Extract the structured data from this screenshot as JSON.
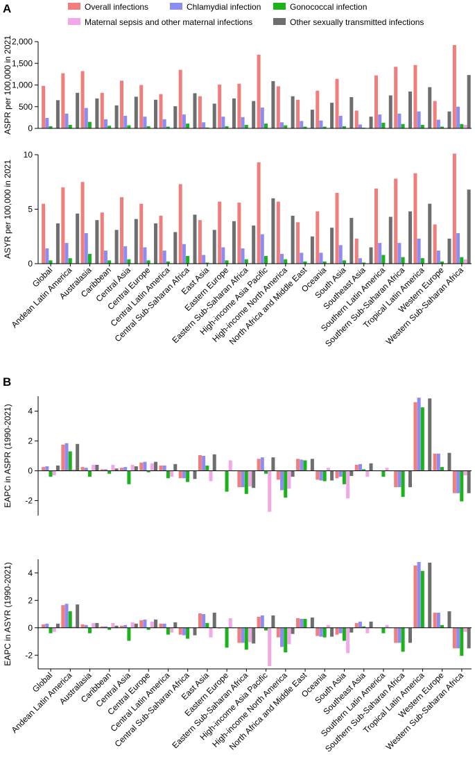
{
  "panel_labels": {
    "a": "A",
    "b": "B"
  },
  "legend": [
    {
      "key": "overall",
      "label": "Overall infections",
      "color": "#F17D7D"
    },
    {
      "key": "chlamydial",
      "label": "Chlamydial infection",
      "color": "#8C8CF2"
    },
    {
      "key": "gonococcal",
      "label": "Gonococcal infection",
      "color": "#1BB21B"
    },
    {
      "key": "maternal",
      "label": "Maternal sepsis and other maternal infections",
      "color": "#F2A7E7"
    },
    {
      "key": "other",
      "label": "Other sexually transmitted infections",
      "color": "#6E6E6E"
    }
  ],
  "chart_data": [
    {
      "type": "bar",
      "ylabel": "ASPR per 100,000 in 2021",
      "ylim": [
        0,
        2000
      ],
      "yticks": [
        0,
        500,
        1000,
        1500,
        2000
      ],
      "ytick_labels": [
        "0",
        "500",
        "1,000",
        "1,500",
        "2,000"
      ],
      "categories": [
        "Global",
        "Andean Latin America",
        "Australasia",
        "Caribbean",
        "Central Asia",
        "Central Europe",
        "Central Latin America",
        "Central Sub-Saharan Africa",
        "East Asia",
        "Eastern Europe",
        "Eastern Sub-Saharan Africa",
        "High-income Asia Pacific",
        "High-income North America",
        "North Africa and Middle East",
        "Oceania",
        "South Asia",
        "Southeast Asia",
        "Southern Latin America",
        "Southern Sub-Saharan Africa",
        "Tropical Latin America",
        "Western Europe",
        "Western Sub-Saharan Africa"
      ],
      "series": [
        {
          "name": "Overall infections",
          "values": [
            980,
            1270,
            1320,
            820,
            1100,
            1000,
            790,
            1350,
            740,
            1010,
            1030,
            1700,
            970,
            660,
            870,
            1140,
            410,
            1220,
            1420,
            1460,
            630,
            1920
          ]
        },
        {
          "name": "Chlamydial infection",
          "values": [
            240,
            340,
            470,
            210,
            290,
            270,
            210,
            320,
            140,
            270,
            260,
            480,
            140,
            170,
            180,
            290,
            90,
            320,
            340,
            390,
            200,
            500
          ]
        },
        {
          "name": "Gonococcal infection",
          "values": [
            50,
            80,
            150,
            60,
            70,
            50,
            40,
            110,
            20,
            50,
            80,
            110,
            70,
            40,
            40,
            50,
            15,
            130,
            100,
            80,
            40,
            100
          ]
        },
        {
          "name": "Maternal sepsis and other maternal infections",
          "values": [
            3,
            4,
            2,
            3,
            3,
            2,
            3,
            3,
            3,
            2,
            4,
            2,
            2,
            3,
            3,
            4,
            2,
            3,
            4,
            3,
            2,
            80
          ]
        },
        {
          "name": "Other sexually transmitted infections",
          "values": [
            650,
            820,
            690,
            530,
            730,
            660,
            510,
            810,
            570,
            690,
            630,
            1090,
            740,
            430,
            590,
            720,
            270,
            760,
            850,
            950,
            390,
            1230
          ]
        }
      ]
    },
    {
      "type": "bar",
      "ylabel": "ASYR per 100,000 in 2021",
      "ylim": [
        0,
        10
      ],
      "yticks": [
        0,
        5,
        10
      ],
      "ytick_labels": [
        "0",
        "5",
        "10"
      ],
      "categories": [
        "Global",
        "Andean Latin America",
        "Australasia",
        "Caribbean",
        "Central Asia",
        "Central Europe",
        "Central Latin America",
        "Central Sub-Saharan Africa",
        "East Asia",
        "Eastern Europe",
        "Eastern Sub-Saharan Africa",
        "High-income Asia Pacific",
        "High-income North America",
        "North Africa and Middle East",
        "Oceania",
        "South Asia",
        "Southeast Asia",
        "Southern Latin America",
        "Southern Sub-Saharan Africa",
        "Tropical Latin America",
        "Western Europe",
        "Western Sub-Saharan Africa"
      ],
      "series": [
        {
          "name": "Overall infections",
          "values": [
            5.5,
            7.0,
            7.5,
            4.7,
            6.1,
            5.5,
            4.4,
            7.3,
            4.0,
            5.7,
            5.6,
            9.3,
            5.7,
            3.8,
            4.8,
            6.5,
            2.3,
            6.9,
            7.8,
            8.3,
            3.6,
            10.1
          ]
        },
        {
          "name": "Chlamydial infection",
          "values": [
            1.4,
            1.9,
            2.8,
            1.2,
            1.6,
            1.5,
            1.2,
            1.8,
            0.8,
            1.5,
            1.4,
            2.7,
            0.9,
            1.0,
            1.0,
            1.7,
            0.5,
            1.9,
            1.9,
            2.3,
            1.2,
            2.8
          ]
        },
        {
          "name": "Gonococcal infection",
          "values": [
            0.3,
            0.5,
            0.9,
            0.3,
            0.4,
            0.3,
            0.2,
            0.7,
            0.1,
            0.3,
            0.4,
            0.7,
            0.4,
            0.2,
            0.2,
            0.3,
            0.1,
            0.8,
            0.6,
            0.5,
            0.2,
            0.6
          ]
        },
        {
          "name": "Maternal sepsis and other maternal infections",
          "values": [
            0.05,
            0.05,
            0.02,
            0.05,
            0.04,
            0.02,
            0.04,
            0.04,
            0.04,
            0.02,
            0.05,
            0.02,
            0.02,
            0.04,
            0.04,
            0.05,
            0.03,
            0.04,
            0.05,
            0.04,
            0.02,
            0.4
          ]
        },
        {
          "name": "Other sexually transmitted infections",
          "values": [
            3.7,
            4.6,
            4.0,
            3.1,
            4.1,
            3.7,
            2.9,
            4.5,
            3.1,
            3.9,
            3.5,
            6.0,
            4.4,
            2.5,
            3.3,
            4.2,
            1.5,
            4.3,
            4.8,
            5.5,
            2.3,
            6.8
          ]
        }
      ]
    },
    {
      "type": "bar",
      "ylabel": "EAPC in ASPR (1990-2021)",
      "ylim": [
        -3,
        5
      ],
      "yticks": [
        -2,
        0,
        2,
        4
      ],
      "ytick_labels": [
        "-2",
        "0",
        "2",
        "4"
      ],
      "categories": [
        "Global",
        "Andean Latin America",
        "Australasia",
        "Caribbean",
        "Central Asia",
        "Central Europe",
        "Central Latin America",
        "Central Sub-Saharan Africa",
        "East Asia",
        "Eastern Europe",
        "Eastern Sub-Saharan Africa",
        "High-income Asia Pacific",
        "High-income North America",
        "North Africa and Middle East",
        "Oceania",
        "South Asia",
        "Southeast Asia",
        "Southern Latin America",
        "Southern Sub-Saharan Africa",
        "Tropical Latin America",
        "Western Europe",
        "Western Sub-Saharan Africa"
      ],
      "series": [
        {
          "name": "Overall infections",
          "values": [
            0.25,
            1.75,
            0.25,
            0.1,
            0.2,
            0.55,
            0.35,
            -0.5,
            1.05,
            0.0,
            -1.1,
            0.8,
            -0.6,
            0.8,
            -0.6,
            -0.5,
            0.4,
            0.0,
            -1.1,
            4.6,
            1.15,
            -1.5
          ]
        },
        {
          "name": "Chlamydial infection",
          "values": [
            0.3,
            1.85,
            0.2,
            0.1,
            0.25,
            0.6,
            0.35,
            -0.5,
            1.0,
            0.0,
            -1.1,
            0.9,
            -1.3,
            0.75,
            -0.65,
            -0.4,
            0.45,
            0.0,
            -1.1,
            4.9,
            1.15,
            -1.5
          ]
        },
        {
          "name": "Gonococcal infection",
          "values": [
            -0.4,
            1.3,
            -0.4,
            -0.2,
            -0.9,
            -0.1,
            -0.5,
            -0.75,
            0.35,
            -1.4,
            -1.55,
            -0.2,
            -1.8,
            0.7,
            -0.7,
            -0.9,
            0.1,
            -0.4,
            -1.75,
            4.25,
            0.25,
            -2.05
          ]
        },
        {
          "name": "Maternal sepsis and other maternal infections",
          "values": [
            -0.3,
            0.1,
            0.4,
            0.4,
            0.4,
            0.5,
            -0.4,
            0.0,
            -0.7,
            0.7,
            -1.05,
            -2.75,
            -1.2,
            0.0,
            0.2,
            -1.85,
            -0.4,
            0.2,
            0.0,
            0.0,
            0.0,
            -0.3
          ]
        },
        {
          "name": "Other sexually transmitted infections",
          "values": [
            0.35,
            1.8,
            0.4,
            0.15,
            0.3,
            0.6,
            0.45,
            -0.55,
            1.1,
            0.0,
            -1.15,
            0.9,
            -0.4,
            0.8,
            -0.65,
            -0.35,
            0.5,
            0.0,
            -1.1,
            4.85,
            1.2,
            -1.5
          ]
        }
      ]
    },
    {
      "type": "bar",
      "ylabel": "EAPC in ASYR (1990-2021)",
      "ylim": [
        -3,
        5
      ],
      "yticks": [
        -2,
        0,
        2,
        4
      ],
      "ytick_labels": [
        "-2",
        "0",
        "2",
        "4"
      ],
      "categories": [
        "Global",
        "Andean Latin America",
        "Australasia",
        "Caribbean",
        "Central Asia",
        "Central Europe",
        "Central Latin America",
        "Central Sub-Saharan Africa",
        "East Asia",
        "Eastern Europe",
        "Eastern Sub-Saharan Africa",
        "High-income Asia Pacific",
        "High-income North America",
        "North Africa and Middle East",
        "Oceania",
        "South Asia",
        "Southeast Asia",
        "Southern Latin America",
        "Southern Sub-Saharan Africa",
        "Tropical Latin America",
        "Western Europe",
        "Western Sub-Saharan Africa"
      ],
      "series": [
        {
          "name": "Overall infections",
          "values": [
            0.25,
            1.65,
            0.25,
            0.1,
            0.15,
            0.55,
            0.3,
            -0.5,
            1.05,
            -0.05,
            -1.1,
            0.8,
            -0.7,
            0.7,
            -0.6,
            -0.5,
            0.35,
            0.0,
            -1.1,
            4.55,
            1.1,
            -1.5
          ]
        },
        {
          "name": "Chlamydial infection",
          "values": [
            0.3,
            1.75,
            0.2,
            0.1,
            0.2,
            0.6,
            0.3,
            -0.55,
            1.0,
            0.0,
            -1.1,
            0.9,
            -1.4,
            0.65,
            -0.65,
            -0.4,
            0.45,
            0.0,
            -1.1,
            4.8,
            1.1,
            -1.5
          ]
        },
        {
          "name": "Gonococcal infection",
          "values": [
            -0.4,
            1.2,
            -0.4,
            -0.15,
            -0.95,
            -0.15,
            -0.5,
            -0.8,
            0.35,
            -1.45,
            -1.6,
            -0.2,
            -1.8,
            0.65,
            -0.7,
            -0.95,
            0.1,
            -0.4,
            -1.75,
            4.15,
            0.2,
            -2.05
          ]
        },
        {
          "name": "Maternal sepsis and other maternal infections",
          "values": [
            -0.3,
            0.1,
            0.35,
            0.35,
            0.4,
            0.45,
            -0.35,
            0.0,
            -0.7,
            0.7,
            -1.05,
            -2.8,
            -1.2,
            0.0,
            0.2,
            -1.85,
            -0.4,
            0.2,
            0.0,
            0.0,
            0.0,
            -0.3
          ]
        },
        {
          "name": "Other sexually transmitted infections",
          "values": [
            0.3,
            1.7,
            0.35,
            0.15,
            0.3,
            0.6,
            0.4,
            -0.55,
            1.1,
            0.0,
            -1.15,
            0.9,
            -0.45,
            0.75,
            -0.65,
            -0.35,
            0.45,
            0.0,
            -1.1,
            4.75,
            1.2,
            -1.5
          ]
        }
      ]
    }
  ]
}
